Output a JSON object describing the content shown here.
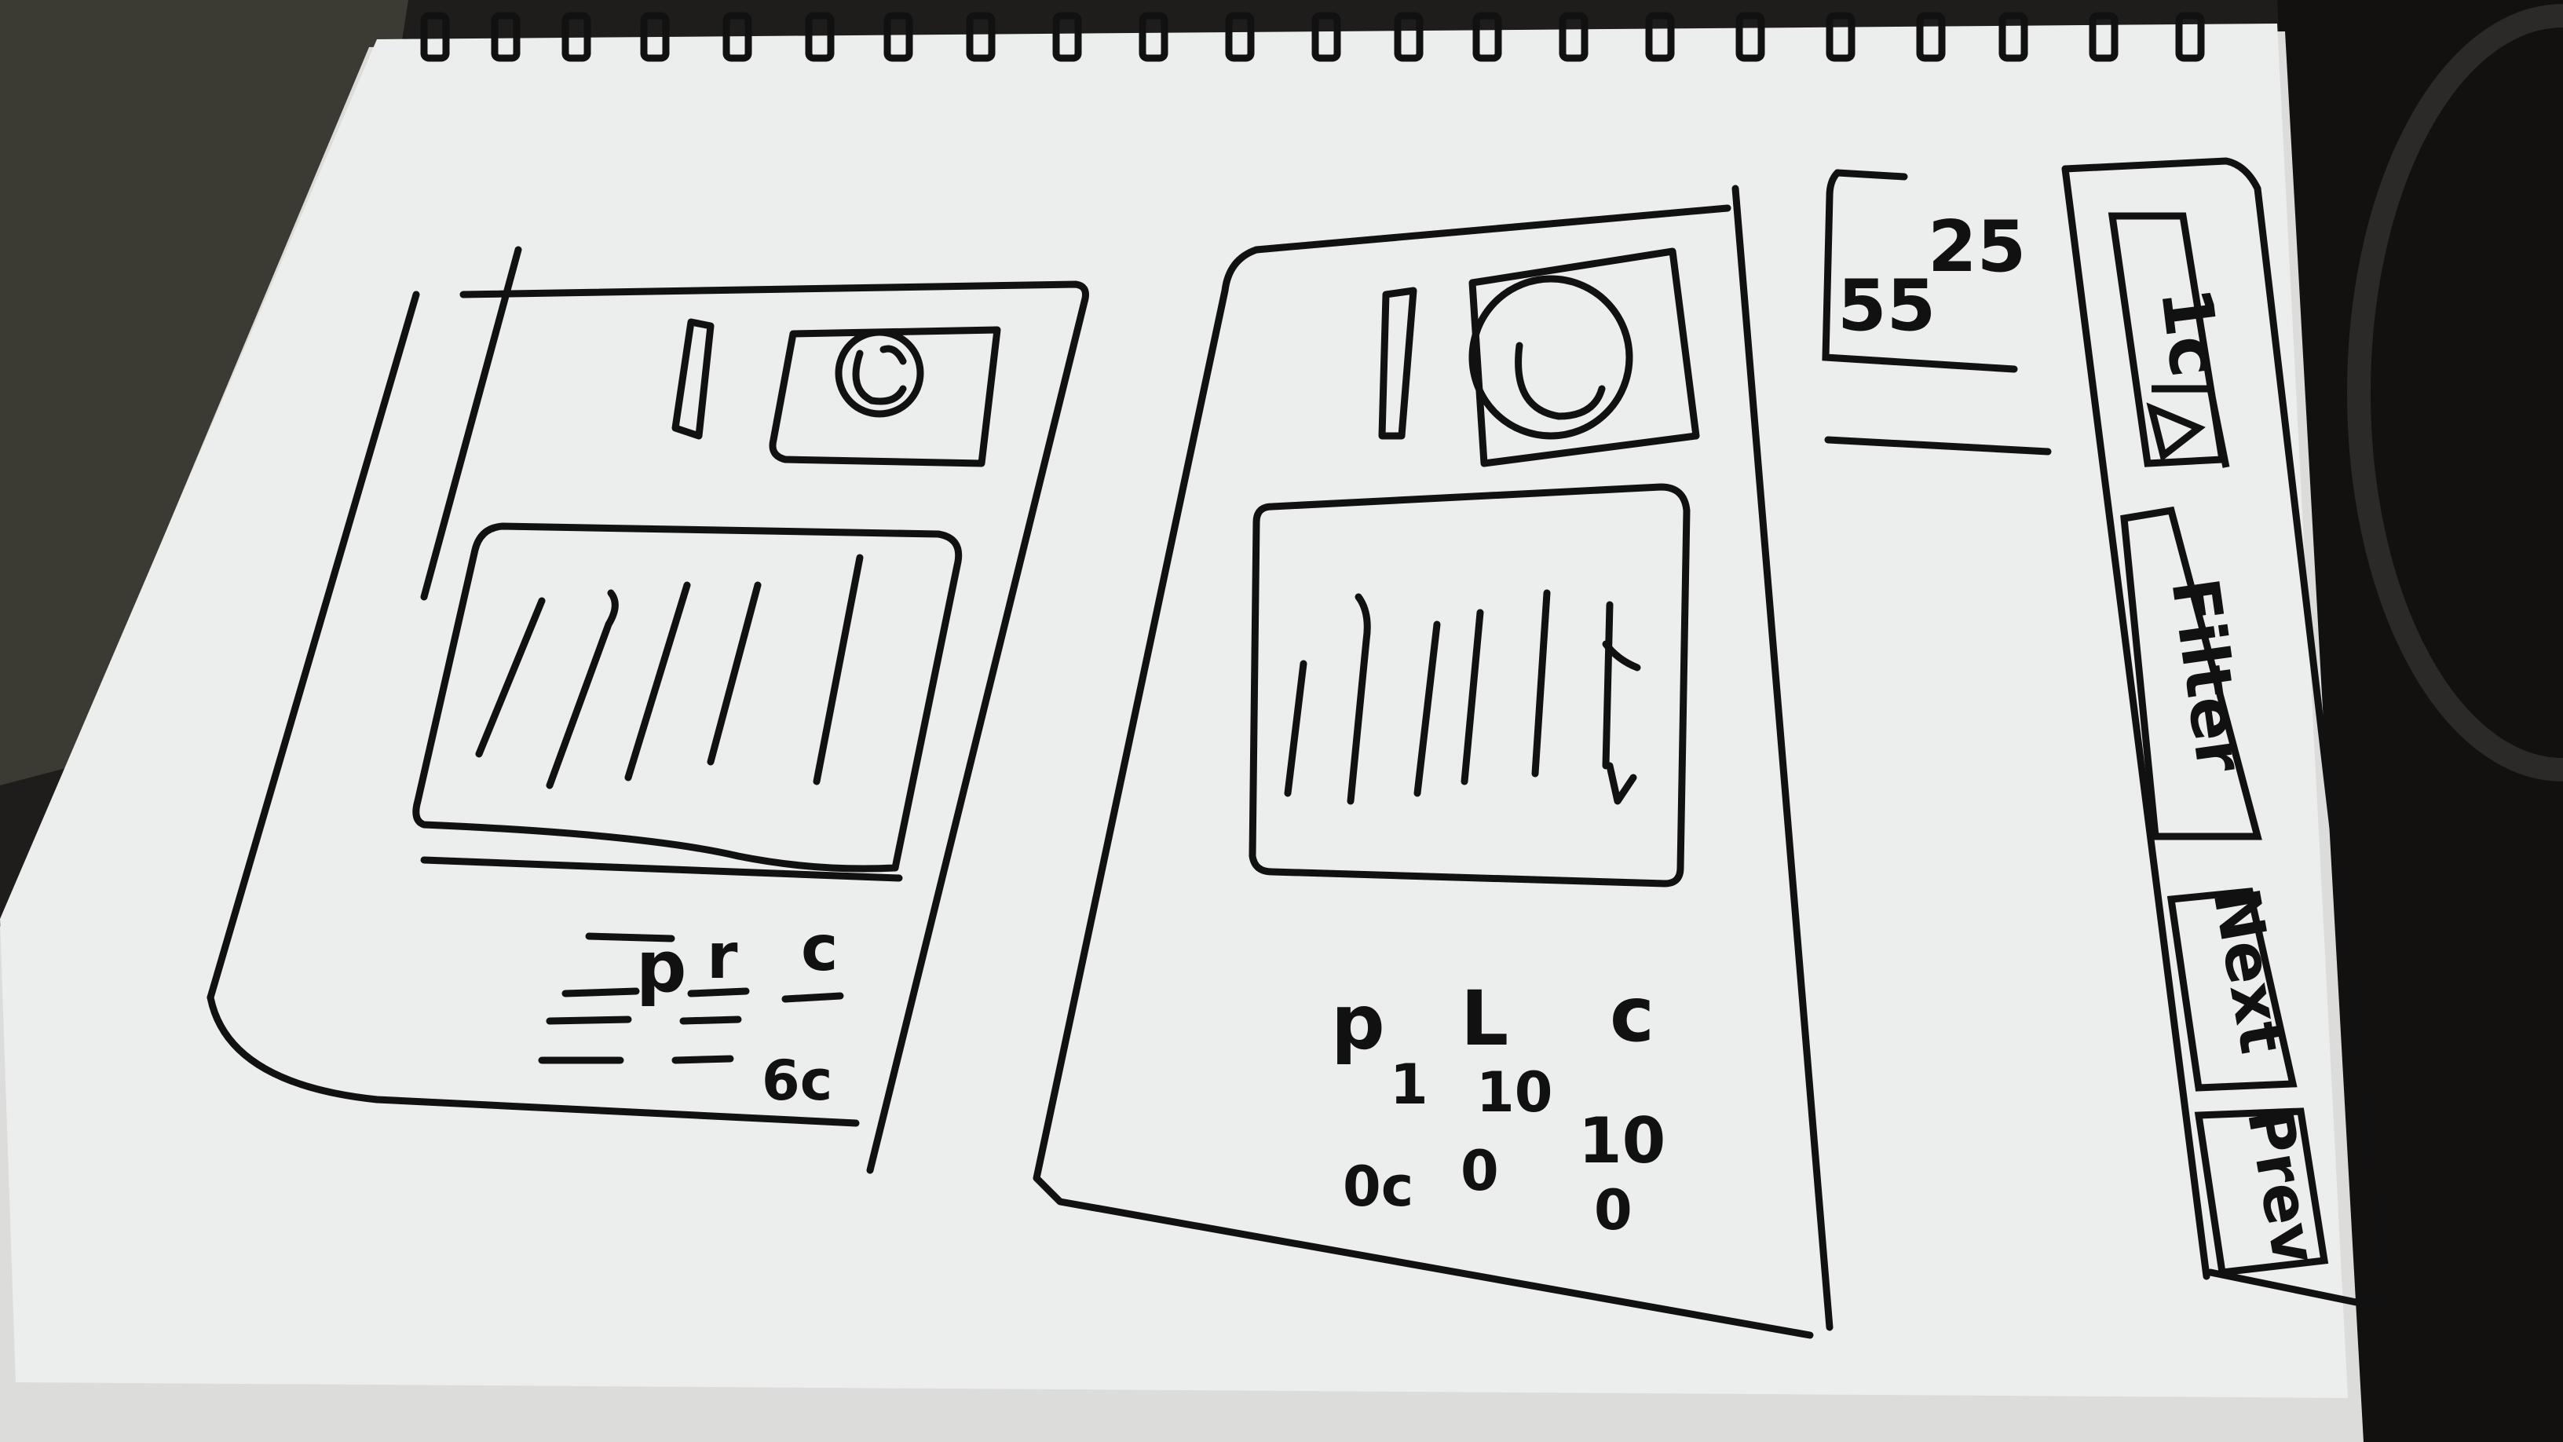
{
  "sketch": {
    "ink_color": "#111111",
    "paper_color": "#ecedec",
    "frame_a": {
      "legend": [
        "p",
        "r",
        "c"
      ],
      "value": "6c"
    },
    "frame_b": {
      "legend": [
        "p",
        "L",
        "c"
      ],
      "values": [
        "1",
        "10",
        "10"
      ],
      "row3": [
        "0c",
        "0",
        "0"
      ]
    },
    "side_panel": {
      "numbers": [
        "25",
        "55"
      ]
    },
    "toolbar": {
      "first_label": "1c",
      "play_icon": "triangle-icon",
      "filter_label": "Filter",
      "next_label": "Next",
      "prev_label": "Prev"
    }
  }
}
